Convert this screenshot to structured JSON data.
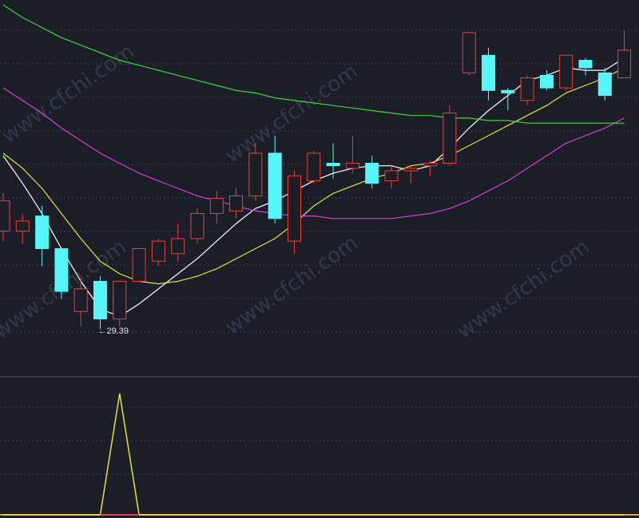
{
  "watermark": "www.cfchi.com",
  "chart_data": [
    {
      "type": "candlestick",
      "title": "",
      "xlabel": "",
      "ylabel": "",
      "grid": true,
      "ylim": [
        27.5,
        42.5
      ],
      "low_marker": {
        "index": 5,
        "label": "←29.39"
      },
      "colors": {
        "up": "#e8413b",
        "down": "#55f5f9",
        "background": "#1b1e27",
        "grid": "#3a3f4e"
      },
      "candles": [
        {
          "o": 33.3,
          "c": 34.5,
          "h": 34.8,
          "l": 32.9
        },
        {
          "o": 33.3,
          "c": 33.7,
          "h": 34.0,
          "l": 32.8
        },
        {
          "o": 33.9,
          "c": 32.6,
          "h": 34.3,
          "l": 31.9
        },
        {
          "o": 32.6,
          "c": 30.9,
          "h": 32.6,
          "l": 30.6
        },
        {
          "o": 30.1,
          "c": 31.0,
          "h": 31.4,
          "l": 29.5
        },
        {
          "o": 31.3,
          "c": 29.8,
          "h": 31.5,
          "l": 29.4
        },
        {
          "o": 29.8,
          "c": 31.3,
          "h": 31.3,
          "l": 29.5
        },
        {
          "o": 31.3,
          "c": 32.6,
          "h": 32.6,
          "l": 31.3
        },
        {
          "o": 32.1,
          "c": 32.9,
          "h": 33.0,
          "l": 31.9
        },
        {
          "o": 32.4,
          "c": 33.0,
          "h": 33.6,
          "l": 32.1
        },
        {
          "o": 33.0,
          "c": 34.0,
          "h": 34.2,
          "l": 32.8
        },
        {
          "o": 34.0,
          "c": 34.6,
          "h": 34.9,
          "l": 33.6
        },
        {
          "o": 34.1,
          "c": 34.7,
          "h": 35.0,
          "l": 33.8
        },
        {
          "o": 34.7,
          "c": 36.4,
          "h": 36.8,
          "l": 34.5
        },
        {
          "o": 36.4,
          "c": 33.8,
          "h": 37.1,
          "l": 33.6
        },
        {
          "o": 32.9,
          "c": 35.5,
          "h": 35.7,
          "l": 32.4
        },
        {
          "o": 35.3,
          "c": 36.4,
          "h": 36.5,
          "l": 35.2
        },
        {
          "o": 36.0,
          "c": 35.9,
          "h": 36.8,
          "l": 35.4
        },
        {
          "o": 35.8,
          "c": 36.0,
          "h": 37.1,
          "l": 35.6
        },
        {
          "o": 36.0,
          "c": 35.2,
          "h": 36.3,
          "l": 35.0
        },
        {
          "o": 35.3,
          "c": 35.7,
          "h": 35.9,
          "l": 35.0
        },
        {
          "o": 35.7,
          "c": 35.8,
          "h": 35.9,
          "l": 35.2
        },
        {
          "o": 35.9,
          "c": 36.0,
          "h": 36.1,
          "l": 35.5
        },
        {
          "o": 36.0,
          "c": 38.0,
          "h": 38.3,
          "l": 35.9
        },
        {
          "o": 39.6,
          "c": 41.2,
          "h": 41.2,
          "l": 39.5
        },
        {
          "o": 40.3,
          "c": 38.9,
          "h": 40.6,
          "l": 38.5
        },
        {
          "o": 38.9,
          "c": 38.8,
          "h": 39.0,
          "l": 38.1
        },
        {
          "o": 38.5,
          "c": 39.4,
          "h": 39.5,
          "l": 38.3
        },
        {
          "o": 39.5,
          "c": 39.0,
          "h": 39.7,
          "l": 38.9
        },
        {
          "o": 39.0,
          "c": 40.3,
          "h": 40.3,
          "l": 38.9
        },
        {
          "o": 40.1,
          "c": 39.8,
          "h": 40.2,
          "l": 39.5
        },
        {
          "o": 39.6,
          "c": 38.7,
          "h": 39.8,
          "l": 38.5
        },
        {
          "o": 39.4,
          "c": 40.5,
          "h": 41.3,
          "l": 39.4
        }
      ],
      "series": [
        {
          "color": "#ffffff",
          "values": [
            36.3,
            35.2,
            34.0,
            32.6,
            31.3,
            30.2,
            29.9,
            30.4,
            31.0,
            31.6,
            32.2,
            32.9,
            33.6,
            34.2,
            34.5,
            34.9,
            35.3,
            35.6,
            35.8,
            35.9,
            35.9,
            35.7,
            35.9,
            36.6,
            37.4,
            38.1,
            38.7,
            39.3,
            39.5,
            39.8,
            39.7,
            39.7,
            40.2
          ]
        },
        {
          "color": "#e6e040",
          "values": [
            36.4,
            35.8,
            35.0,
            34.0,
            33.0,
            32.1,
            31.6,
            31.3,
            31.2,
            31.3,
            31.5,
            31.8,
            32.2,
            32.6,
            33.0,
            33.6,
            34.3,
            34.8,
            35.1,
            35.4,
            35.6,
            35.9,
            36.0,
            36.3,
            36.7,
            37.1,
            37.5,
            37.9,
            38.3,
            38.8,
            39.1,
            39.4,
            39.8
          ]
        },
        {
          "color": "#d63fd6",
          "values": [
            39.0,
            38.5,
            38.0,
            37.4,
            36.9,
            36.4,
            36.0,
            35.6,
            35.3,
            35.0,
            34.7,
            34.5,
            34.3,
            34.1,
            34.0,
            33.9,
            33.9,
            33.8,
            33.8,
            33.8,
            33.8,
            33.9,
            34.0,
            34.2,
            34.5,
            34.9,
            35.3,
            35.8,
            36.3,
            36.8,
            37.1,
            37.4,
            37.8
          ]
        },
        {
          "color": "#3fd63f",
          "values": [
            42.3,
            41.8,
            41.4,
            41.0,
            40.7,
            40.4,
            40.1,
            39.9,
            39.7,
            39.5,
            39.3,
            39.1,
            38.9,
            38.8,
            38.6,
            38.5,
            38.4,
            38.3,
            38.2,
            38.1,
            38.0,
            37.9,
            37.9,
            37.8,
            37.8,
            37.7,
            37.7,
            37.6,
            37.6,
            37.6,
            37.6,
            37.6,
            37.6
          ]
        }
      ]
    },
    {
      "type": "line",
      "title": "",
      "xlabel": "",
      "ylabel": "",
      "grid": true,
      "ylim": [
        0,
        1
      ],
      "series": [
        {
          "color": "#e6e040",
          "values": [
            0,
            0,
            0,
            0,
            0,
            0,
            1,
            0,
            0,
            0,
            0,
            0,
            0,
            0,
            0,
            0,
            0,
            0,
            0,
            0,
            0,
            0,
            0,
            0,
            0,
            0,
            0,
            0,
            0,
            0,
            0,
            0,
            0
          ]
        }
      ],
      "baseline_color": "#e8a020",
      "signal_color": "#e8413b"
    }
  ]
}
